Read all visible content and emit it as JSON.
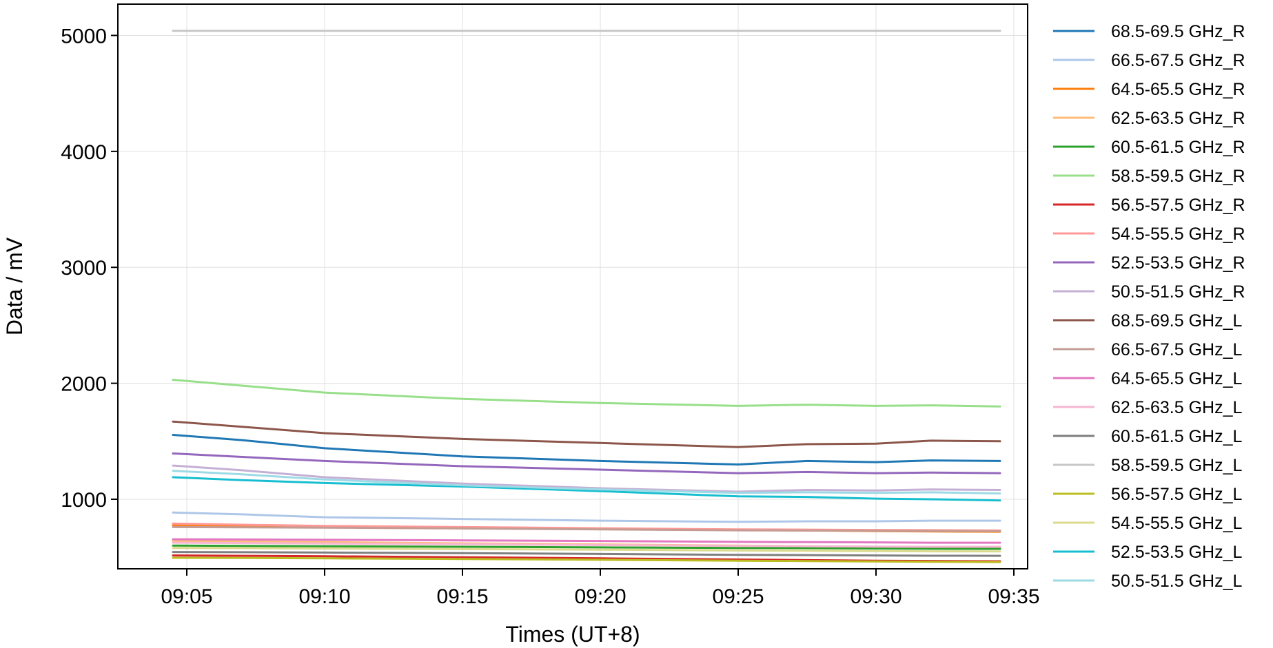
{
  "chart_data": {
    "type": "line",
    "title": "",
    "xlabel": "Times (UT+8)",
    "ylabel": "Data / mV",
    "x_ticks": [
      "09:05",
      "09:10",
      "09:15",
      "09:20",
      "09:25",
      "09:30",
      "09:35"
    ],
    "y_ticks": [
      "1000",
      "2000",
      "3000",
      "4000",
      "5000"
    ],
    "xlim": [
      "09:02:30",
      "09:35:30"
    ],
    "ylim": [
      400,
      5270
    ],
    "grid": true,
    "legend": "outside-right",
    "x": [
      "09:04:30",
      "09:07:00",
      "09:10:00",
      "09:15:00",
      "09:20:00",
      "09:25:00",
      "09:27:30",
      "09:30:00",
      "09:32:00",
      "09:34:30"
    ],
    "series": [
      {
        "name": "68.5-69.5 GHz_R",
        "color": "#1f77b4",
        "values": [
          1555,
          1510,
          1440,
          1370,
          1330,
          1300,
          1330,
          1320,
          1335,
          1330
        ]
      },
      {
        "name": "66.5-67.5 GHz_R",
        "color": "#aec7e8",
        "values": [
          885,
          870,
          845,
          830,
          815,
          805,
          810,
          810,
          815,
          815
        ]
      },
      {
        "name": "64.5-65.5 GHz_R",
        "color": "#ff7f0e",
        "values": [
          775,
          770,
          765,
          755,
          745,
          735,
          730,
          725,
          722,
          720
        ]
      },
      {
        "name": "62.5-63.5 GHz_R",
        "color": "#ffbb78",
        "values": [
          640,
          635,
          630,
          620,
          610,
          600,
          595,
          590,
          588,
          585
        ]
      },
      {
        "name": "60.5-61.5 GHz_R",
        "color": "#2ca02c",
        "values": [
          600,
          598,
          595,
          590,
          585,
          580,
          578,
          575,
          573,
          572
        ]
      },
      {
        "name": "58.5-59.5 GHz_R",
        "color": "#98df8a",
        "values": [
          2030,
          1980,
          1920,
          1865,
          1830,
          1805,
          1815,
          1805,
          1810,
          1800
        ]
      },
      {
        "name": "56.5-57.5 GHz_R",
        "color": "#d62728",
        "values": [
          515,
          512,
          508,
          500,
          490,
          480,
          475,
          470,
          468,
          465
        ]
      },
      {
        "name": "54.5-55.5 GHz_R",
        "color": "#ff9896",
        "values": [
          790,
          780,
          770,
          760,
          750,
          740,
          738,
          735,
          733,
          730
        ]
      },
      {
        "name": "52.5-53.5 GHz_R",
        "color": "#9467bd",
        "values": [
          1395,
          1365,
          1330,
          1285,
          1255,
          1225,
          1235,
          1225,
          1230,
          1225
        ]
      },
      {
        "name": "50.5-51.5 GHz_R",
        "color": "#c5b0d5",
        "values": [
          1290,
          1250,
          1190,
          1135,
          1095,
          1065,
          1080,
          1075,
          1085,
          1080
        ]
      },
      {
        "name": "68.5-69.5 GHz_L",
        "color": "#8c564b",
        "values": [
          1670,
          1625,
          1570,
          1520,
          1485,
          1450,
          1475,
          1480,
          1505,
          1500
        ]
      },
      {
        "name": "66.5-67.5 GHz_L",
        "color": "#c49c94",
        "values": [
          760,
          758,
          755,
          748,
          740,
          732,
          730,
          728,
          726,
          725
        ]
      },
      {
        "name": "64.5-65.5 GHz_L",
        "color": "#e377c2",
        "values": [
          655,
          653,
          650,
          645,
          640,
          632,
          630,
          628,
          625,
          625
        ]
      },
      {
        "name": "62.5-63.5 GHz_L",
        "color": "#f7b6d2",
        "values": [
          625,
          622,
          618,
          612,
          605,
          598,
          595,
          592,
          590,
          590
        ]
      },
      {
        "name": "60.5-61.5 GHz_L",
        "color": "#7f7f7f",
        "values": [
          545,
          543,
          540,
          535,
          528,
          520,
          518,
          515,
          513,
          512
        ]
      },
      {
        "name": "58.5-59.5 GHz_L",
        "color": "#c7c7c7",
        "values": [
          5040,
          5040,
          5040,
          5040,
          5040,
          5040,
          5040,
          5040,
          5040,
          5040
        ]
      },
      {
        "name": "56.5-57.5 GHz_L",
        "color": "#bcbd22",
        "values": [
          495,
          493,
          490,
          485,
          478,
          470,
          467,
          463,
          460,
          458
        ]
      },
      {
        "name": "54.5-55.5 GHz_L",
        "color": "#dbdb8d",
        "values": [
          580,
          578,
          575,
          570,
          565,
          558,
          556,
          553,
          551,
          550
        ]
      },
      {
        "name": "52.5-53.5 GHz_L",
        "color": "#17becf",
        "values": [
          1190,
          1165,
          1140,
          1110,
          1070,
          1025,
          1020,
          1005,
          1000,
          990
        ]
      },
      {
        "name": "50.5-51.5 GHz_L",
        "color": "#9edae5",
        "values": [
          1245,
          1215,
          1170,
          1120,
          1085,
          1055,
          1060,
          1055,
          1060,
          1050
        ]
      }
    ]
  }
}
